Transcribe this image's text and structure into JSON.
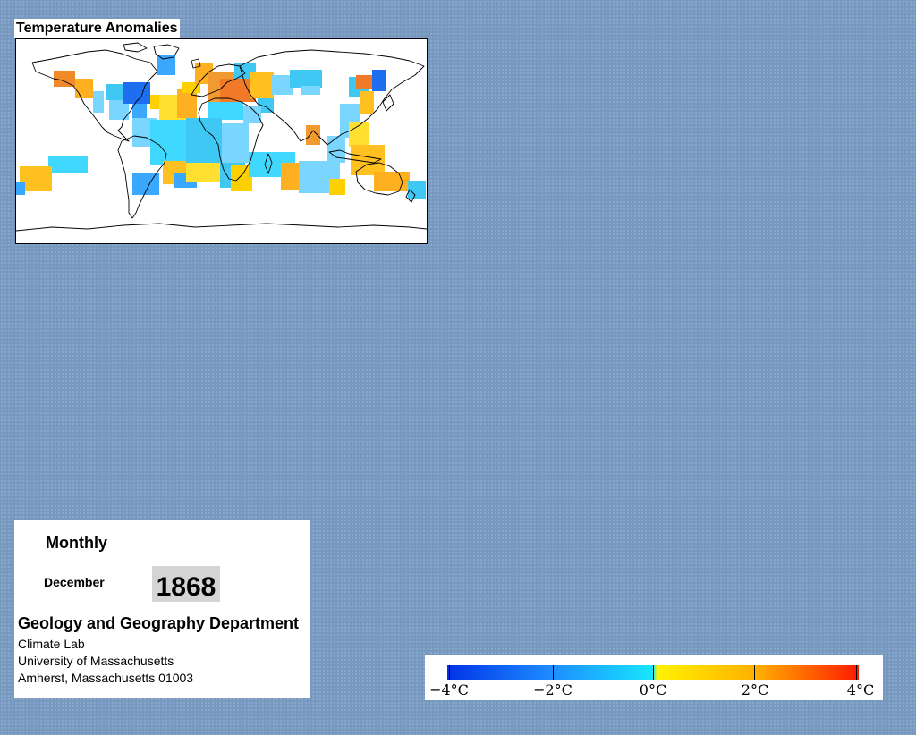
{
  "map": {
    "title": "Temperature Anomalies",
    "projection": "equirectangular world map",
    "coastline_color": "#000000",
    "no_data_color": "#ffffff"
  },
  "info": {
    "period": "Monthly",
    "month": "December",
    "year": "1868",
    "department": "Geology and Geography Department",
    "lab": "Climate Lab",
    "university": "University of Massachusetts",
    "address": "Amherst, Massachusetts 01003"
  },
  "legend": {
    "unit": "°C",
    "range": [
      -4,
      4
    ],
    "ticks": [
      {
        "label": "−4°C",
        "value": -4
      },
      {
        "label": "−2°C",
        "value": -2
      },
      {
        "label": "0°C",
        "value": 0
      },
      {
        "label": "2°C",
        "value": 2
      },
      {
        "label": "4°C",
        "value": 4
      }
    ],
    "colors": {
      "cold_extreme": "#0033e6",
      "cold": "#1e8bff",
      "near_zero_cold": "#18e6ff",
      "near_zero_warm": "#fff200",
      "warm": "#ffb000",
      "warm_extreme": "#ff1a00"
    }
  },
  "colors": {
    "background": "#7899bf",
    "panel": "#ffffff",
    "year_box": "#d4d4d4"
  }
}
